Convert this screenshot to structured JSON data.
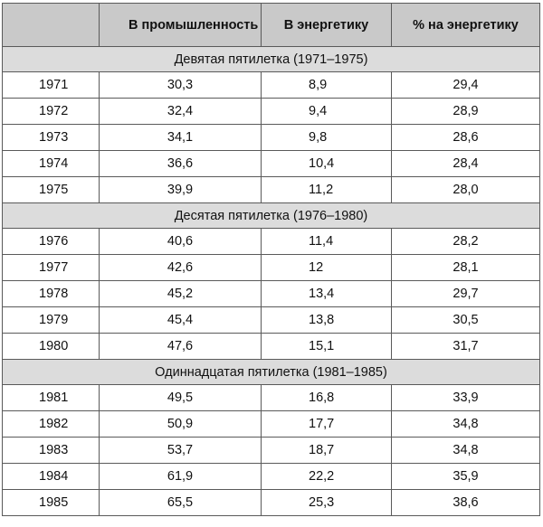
{
  "table": {
    "headers": [
      "",
      "В промышленность",
      "В энергетику",
      "% на энергетику"
    ],
    "groups": [
      {
        "title": "Девятая пятилетка (1971–1975)",
        "rows": [
          [
            "1971",
            "30,3",
            "8,9",
            "29,4"
          ],
          [
            "1972",
            "32,4",
            "9,4",
            "28,9"
          ],
          [
            "1973",
            "34,1",
            "9,8",
            "28,6"
          ],
          [
            "1974",
            "36,6",
            "10,4",
            "28,4"
          ],
          [
            "1975",
            "39,9",
            "11,2",
            "28,0"
          ]
        ]
      },
      {
        "title": "Десятая пятилетка (1976–1980)",
        "rows": [
          [
            "1976",
            "40,6",
            "11,4",
            "28,2"
          ],
          [
            "1977",
            "42,6",
            "12",
            "28,1"
          ],
          [
            "1978",
            "45,2",
            "13,4",
            "29,7"
          ],
          [
            "1979",
            "45,4",
            "13,8",
            "30,5"
          ],
          [
            "1980",
            "47,6",
            "15,1",
            "31,7"
          ]
        ]
      },
      {
        "title": "Одиннадцатая пятилетка (1981–1985)",
        "rows": [
          [
            "1981",
            "49,5",
            "16,8",
            "33,9"
          ],
          [
            "1982",
            "50,9",
            "17,7",
            "34,8"
          ],
          [
            "1983",
            "53,7",
            "18,7",
            "34,8"
          ],
          [
            "1984",
            "61,9",
            "22,2",
            "35,9"
          ],
          [
            "1985",
            "65,5",
            "25,3",
            "38,6"
          ]
        ]
      }
    ]
  }
}
